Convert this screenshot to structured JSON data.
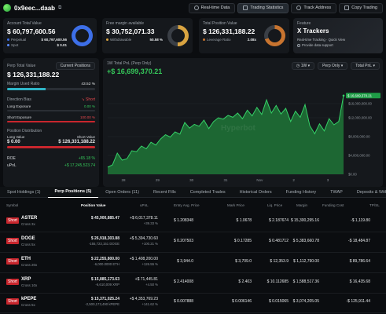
{
  "header": {
    "address": "0x9eec...daab",
    "buttons": [
      {
        "label": "Real-time Data",
        "icon": "clock-icon"
      },
      {
        "label": "Trading Statistics",
        "icon": "stats-icon"
      },
      {
        "label": "Track Address",
        "icon": "bell-icon"
      },
      {
        "label": "Copy Trading",
        "icon": "copy-icon"
      }
    ]
  },
  "cards": {
    "account": {
      "label": "Account Total Value",
      "value": "$ 60,797,600.56",
      "perp_label": "Perpetual",
      "perp_value": "$ 60,797,600.56",
      "spot_label": "Spot",
      "spot_value": "$ 0.01",
      "donut_color": "#3d6fe8"
    },
    "margin": {
      "label": "Free margin available",
      "value": "$ 30,752,071.33",
      "withdraw_label": "Withdrawable",
      "withdraw_value": "50.58 %",
      "donut_color": "#d9a441"
    },
    "position": {
      "label": "Total Position Value",
      "value": "$ 126,331,188.22",
      "lev_label": "Leverage Ratio",
      "lev_value": "2.08x",
      "donut_color": "#c8742f"
    },
    "feature": {
      "label": "Feature",
      "title": "X Trackers",
      "desc": "Real-time Tracking · Quick View",
      "desc2": "Provide data support"
    }
  },
  "left": {
    "perp_total_label": "Perp Total Value",
    "current_positions_btn": "Current Positions",
    "perp_total_value": "$ 126,331,188.22",
    "margin_used_label": "Margin Used Ratio",
    "margin_used_value": "43.52 %",
    "margin_used_pct": 43.52,
    "direction_label": "Direction Bias",
    "direction_value": "Short",
    "long_exp_label": "Long Exposure",
    "long_exp_value": "0.00 %",
    "short_exp_label": "Short Exposure",
    "short_exp_value": "100.00 %",
    "pos_dist_label": "Position Distribution",
    "long_value_label": "Long Value",
    "short_value_label": "Short Value",
    "long_value": "$ 0.00",
    "short_value": "$ 126,331,188.22",
    "roe_label": "ROE",
    "roe_value": "+65.18 %",
    "upnl_label": "uPnL",
    "upnl_value": "+$ 17,245,523.74"
  },
  "chart_panel": {
    "title": "1W Total PnL (Perp Only)",
    "pnl_value": "+$ 16,699,370.21",
    "selectors": [
      "1W",
      "Perp Only",
      "Total PnL"
    ],
    "watermark": "Hyperbot"
  },
  "chart_data": {
    "type": "area",
    "x_ticks": [
      "28",
      "29",
      "30",
      "31",
      "Nov",
      "2",
      "3"
    ],
    "y_ticks": [
      "$16,000,000.00",
      "$12,000,000.00",
      "$8,000,000.00",
      "$4,000,000.00",
      "$0.00"
    ],
    "ylim": [
      0,
      16000000
    ],
    "last_label": "$ 16,699,370.21",
    "values": [
      1500000,
      2000000,
      4500000,
      3000000,
      3300000,
      5000000,
      4800000,
      6000000,
      5400000,
      6800000,
      6200000,
      7500000,
      8400000,
      7900000,
      9000000,
      8500000,
      11000000,
      9800000,
      10600000,
      10200000,
      11500000,
      9700000,
      11200000,
      12000000,
      11700000,
      12500000,
      12100000,
      13000000,
      11800000,
      13600000,
      12400000,
      14200000,
      12700000,
      15800000,
      13000000,
      14600000,
      12800000,
      14000000,
      11200000,
      13400000,
      12100000,
      14800000,
      10300000,
      8600000,
      10700000,
      9200000,
      11800000,
      10500000,
      11200000,
      16699370
    ],
    "line_color": "#35d067",
    "fill_color": "#1d6b35"
  },
  "tabs": [
    "Spot Holdings (1)",
    "Perp Positions (5)",
    "Open Orders (11)",
    "Recent Fills",
    "Completed Trades",
    "Historical Orders",
    "Funding History",
    "TWAP",
    "Deposits & Withdr"
  ],
  "table": {
    "headers": [
      "Symbol",
      "Position Value",
      "uPnL",
      "Entry Avg. Price",
      "Mark Price",
      "Liq. Price",
      "Margin",
      "Funding Cost",
      "TP/SL"
    ],
    "rows": [
      {
        "side": "Short",
        "symbol": "ASTER",
        "cross": "Cross 3x",
        "pos_value": "$ 45,900,885.47",
        "pos_sub": "",
        "upnl": "+$ 6,017,378.11",
        "upnl_pct": "+39.33 %",
        "entry": "$ 1.208348",
        "mark": "$ 1.0678",
        "liq": "$ 2.187674",
        "margin": "$ 15,300,295.16",
        "funding": "-$ 1,119.80"
      },
      {
        "side": "Short",
        "symbol": "DOGE",
        "cross": "Cross 5x",
        "pos_value": "$ 26,918,303.88",
        "pos_sub": "-155,723,151 DOGE",
        "upnl": "+$ 5,394,730.60",
        "upnl_pct": "+100.21 %",
        "entry": "$ 0.207503",
        "mark": "$ 0.17285",
        "liq": "$ 0.481712",
        "margin": "$ 5,383,660.78",
        "funding": "-$ 18,484.87"
      },
      {
        "side": "Short",
        "symbol": "ETH",
        "cross": "Cross 20x",
        "pos_value": "$ 22,255,800.00",
        "pos_sub": "-6,000.0000 ETH",
        "upnl": "+$ 1,408,200.00",
        "upnl_pct": "+126.55 %",
        "entry": "$ 3,944.0",
        "mark": "$ 3,709.0",
        "liq": "$ 12,353.9",
        "margin": "$ 1,112,790.00",
        "funding": "$ 89,786.64"
      },
      {
        "side": "Short",
        "symbol": "XRP",
        "cross": "Cross 10x",
        "pos_value": "$ 15,885,173.63",
        "pos_sub": "-6,610,009 XRP",
        "upnl": "+$ 71,445.81",
        "upnl_pct": "+4.50 %",
        "entry": "$ 2.414008",
        "mark": "$ 2.403",
        "liq": "$ 10.112685",
        "margin": "$ 1,588,517.36",
        "funding": "$ 16,435.68"
      },
      {
        "side": "Short",
        "symbol": "kPEPE",
        "cross": "Cross 5x",
        "pos_value": "$ 15,371,025.24",
        "pos_sub": "-2,500,173,490 kPEPE",
        "upnl": "+$ 4,353,769.23",
        "upnl_pct": "+141.62 %",
        "entry": "$ 0.007888",
        "mark": "$ 0.006146",
        "liq": "$ 0.015065",
        "margin": "$ 3,074,205.05",
        "funding": "-$ 125,911.44"
      }
    ]
  }
}
